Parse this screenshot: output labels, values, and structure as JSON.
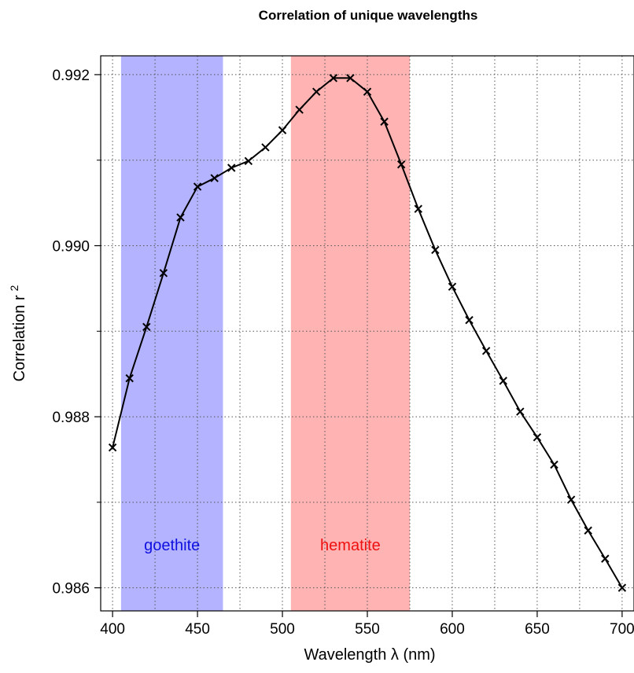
{
  "chart_data": {
    "type": "line",
    "title": "Correlation of unique wavelengths",
    "xlabel": "Wavelength λ (nm)",
    "ylabel": "Correlation r",
    "ylabel_superscript": "2",
    "xlim": [
      393,
      707
    ],
    "ylim": [
      0.98573,
      0.99222
    ],
    "x_ticks": [
      400,
      450,
      500,
      550,
      600,
      650,
      700
    ],
    "x_tick_labels": [
      "400",
      "450",
      "500",
      "550",
      "600",
      "650",
      "700"
    ],
    "x_minor_grid": [
      425,
      475,
      525,
      575,
      625,
      675
    ],
    "y_ticks": [
      0.986,
      0.988,
      0.99,
      0.992
    ],
    "y_tick_labels": [
      "0.986",
      "0.988",
      "0.990",
      "0.992"
    ],
    "y_minor_grid": [
      0.987,
      0.989,
      0.991
    ],
    "grid": true,
    "grid_style": "dotted",
    "bands": [
      {
        "label": "goethite",
        "x_range": [
          405,
          465
        ],
        "fill": "#b3b3ff",
        "text_color": "#1010e0",
        "label_x": 435,
        "label_y": 0.9865
      },
      {
        "label": "hematite",
        "x_range": [
          505,
          575
        ],
        "fill": "#ffb3b3",
        "text_color": "#ee1010",
        "label_x": 540,
        "label_y": 0.9865
      }
    ],
    "series": [
      {
        "line_color": "#000000",
        "marker": "x",
        "x": [
          400,
          410,
          420,
          430,
          440,
          450,
          460,
          470,
          480,
          490,
          500,
          510,
          520,
          530,
          540,
          550,
          560,
          570,
          580,
          590,
          600,
          610,
          620,
          630,
          640,
          650,
          660,
          670,
          680,
          690,
          700
        ],
        "y": [
          0.98764,
          0.98845,
          0.98905,
          0.98968,
          0.99033,
          0.99069,
          0.99079,
          0.99091,
          0.99099,
          0.99115,
          0.99135,
          0.99159,
          0.9918,
          0.99196,
          0.99196,
          0.9918,
          0.99145,
          0.99095,
          0.99043,
          0.98995,
          0.98952,
          0.98913,
          0.98877,
          0.98842,
          0.98806,
          0.98776,
          0.98744,
          0.98703,
          0.98667,
          0.98634,
          0.986
        ]
      }
    ]
  }
}
